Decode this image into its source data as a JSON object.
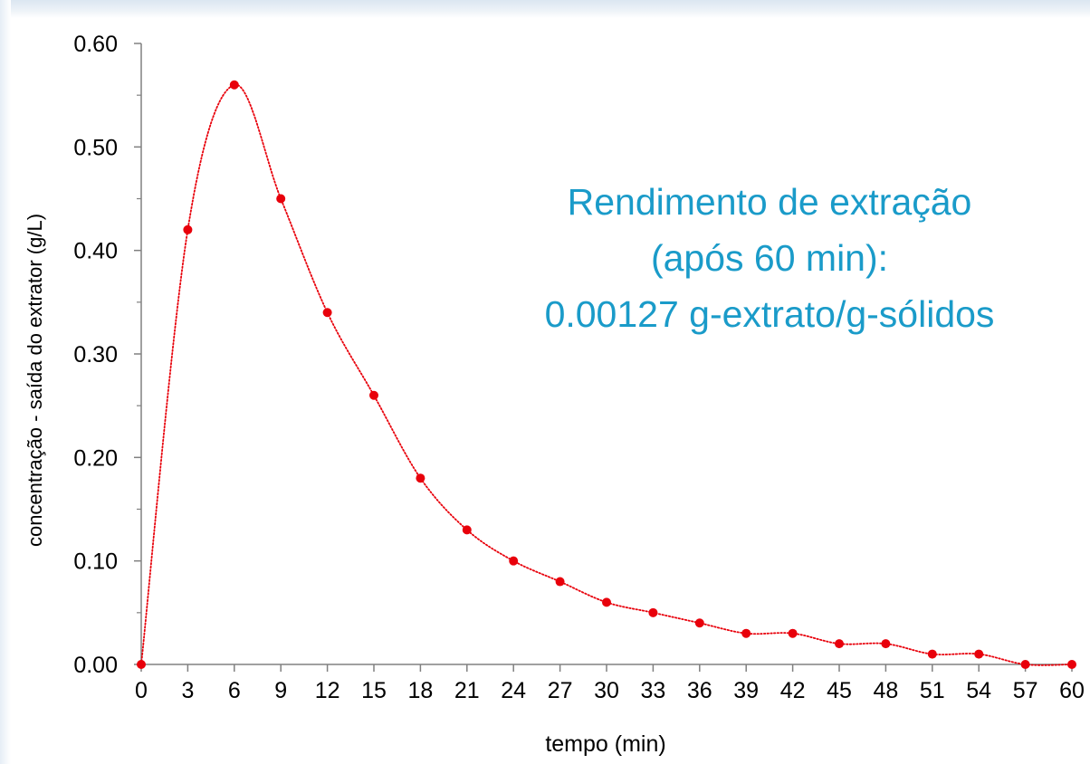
{
  "chart_data": {
    "type": "line",
    "x": [
      0,
      3,
      6,
      9,
      12,
      15,
      18,
      21,
      24,
      27,
      30,
      33,
      36,
      39,
      42,
      45,
      48,
      51,
      54,
      57,
      60
    ],
    "series": [
      {
        "values": [
          0.0,
          0.42,
          0.56,
          0.45,
          0.34,
          0.26,
          0.18,
          0.13,
          0.1,
          0.08,
          0.06,
          0.05,
          0.04,
          0.03,
          0.03,
          0.02,
          0.02,
          0.01,
          0.01,
          0.0,
          0.0
        ],
        "color": "#e8000b",
        "line_style": "dotted",
        "marker": "circle"
      }
    ],
    "xlabel": "tempo (min)",
    "ylabel": "concentração - saída do extrator (g/L)",
    "xlim": [
      0,
      60
    ],
    "ylim": [
      0,
      0.6
    ],
    "xticks": [
      "0",
      "3",
      "6",
      "9",
      "12",
      "15",
      "18",
      "21",
      "24",
      "27",
      "30",
      "33",
      "36",
      "39",
      "42",
      "45",
      "48",
      "51",
      "54",
      "57",
      "60"
    ],
    "yticks": [
      "0.00",
      "0.10",
      "0.20",
      "0.30",
      "0.40",
      "0.50",
      "0.60"
    ],
    "grid": false,
    "annotation": {
      "lines": [
        "Rendimento de extração",
        "(após 60 min):",
        "0.00127 g-extrato/g-sólidos"
      ],
      "color": "#1a9bc9"
    }
  }
}
